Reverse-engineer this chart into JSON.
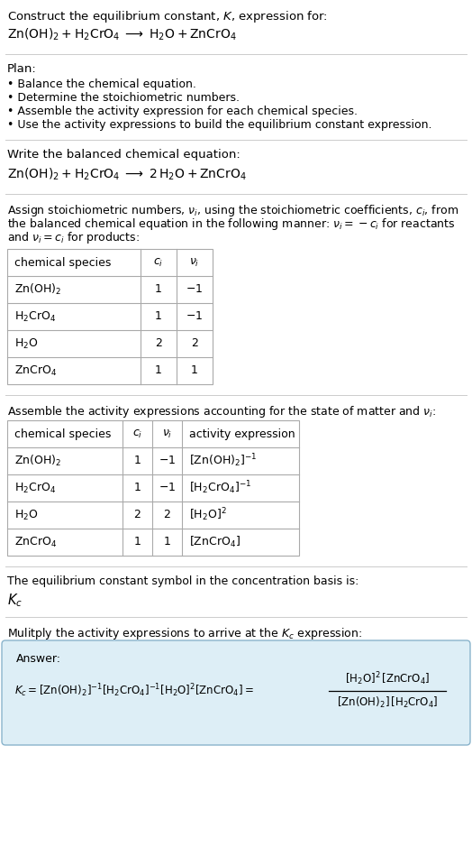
{
  "title_line1": "Construct the equilibrium constant, $K$, expression for:",
  "title_line2": "$\\mathrm{Zn(OH)_2 + H_2CrO_4 \\;\\longrightarrow\\; H_2O + ZnCrO_4}$",
  "plan_header": "Plan:",
  "plan_items": [
    "• Balance the chemical equation.",
    "• Determine the stoichiometric numbers.",
    "• Assemble the activity expression for each chemical species.",
    "• Use the activity expressions to build the equilibrium constant expression."
  ],
  "balanced_header": "Write the balanced chemical equation:",
  "balanced_eq": "$\\mathrm{Zn(OH)_2 + H_2CrO_4 \\;\\longrightarrow\\; 2\\,H_2O + ZnCrO_4}$",
  "stoich_header_lines": [
    "Assign stoichiometric numbers, $\\nu_i$, using the stoichiometric coefficients, $c_i$, from",
    "the balanced chemical equation in the following manner: $\\nu_i = -c_i$ for reactants",
    "and $\\nu_i = c_i$ for products:"
  ],
  "table1_headers": [
    "chemical species",
    "$c_i$",
    "$\\nu_i$"
  ],
  "table1_rows": [
    [
      "$\\mathrm{Zn(OH)_2}$",
      "1",
      "$-1$"
    ],
    [
      "$\\mathrm{H_2CrO_4}$",
      "1",
      "$-1$"
    ],
    [
      "$\\mathrm{H_2O}$",
      "2",
      "2"
    ],
    [
      "$\\mathrm{ZnCrO_4}$",
      "1",
      "1"
    ]
  ],
  "activity_header": "Assemble the activity expressions accounting for the state of matter and $\\nu_i$:",
  "table2_headers": [
    "chemical species",
    "$c_i$",
    "$\\nu_i$",
    "activity expression"
  ],
  "table2_rows": [
    [
      "$\\mathrm{Zn(OH)_2}$",
      "1",
      "$-1$",
      "$[\\mathrm{Zn(OH)_2}]^{-1}$"
    ],
    [
      "$\\mathrm{H_2CrO_4}$",
      "1",
      "$-1$",
      "$[\\mathrm{H_2CrO_4}]^{-1}$"
    ],
    [
      "$\\mathrm{H_2O}$",
      "2",
      "2",
      "$[\\mathrm{H_2O}]^{2}$"
    ],
    [
      "$\\mathrm{ZnCrO_4}$",
      "1",
      "1",
      "$[\\mathrm{ZnCrO_4}]$"
    ]
  ],
  "kc_text": "The equilibrium constant symbol in the concentration basis is:",
  "kc_symbol": "$K_c$",
  "multiply_header": "Mulitply the activity expressions to arrive at the $K_c$ expression:",
  "answer_label": "Answer:",
  "kc_expr_left": "$K_c = [\\mathrm{Zn(OH)_2}]^{-1}[\\mathrm{H_2CrO_4}]^{-1}[\\mathrm{H_2O}]^{2}[\\mathrm{ZnCrO_4}] = $",
  "kc_fraction_num": "$[\\mathrm{H_2O}]^{2}\\,[\\mathrm{ZnCrO_4}]$",
  "kc_fraction_den": "$[\\mathrm{Zn(OH)_2}]\\,[\\mathrm{H_2CrO_4}]$",
  "bg_color": "#ffffff",
  "answer_bg": "#ddeef6",
  "answer_border": "#8ab4cc",
  "table_border": "#aaaaaa",
  "text_color": "#000000",
  "separator_color": "#cccccc",
  "fs_main": 9.5,
  "fs_small": 9.0,
  "fs_table": 9.0
}
